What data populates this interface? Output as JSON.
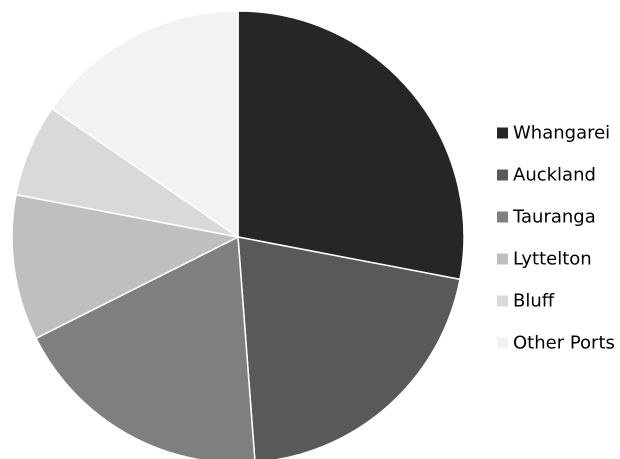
{
  "chart_data": {
    "type": "pie",
    "title": "",
    "legend_position": "right",
    "slices": [
      {
        "label": "Whangarei",
        "value": 28,
        "color": "#262626"
      },
      {
        "label": "Auckland",
        "value": 20.8,
        "color": "#595959"
      },
      {
        "label": "Tauranga",
        "value": 18.8,
        "color": "#7f7f7f"
      },
      {
        "label": "Lyttelton",
        "value": 10.4,
        "color": "#bfbfbf"
      },
      {
        "label": "Bluff",
        "value": 6.6,
        "color": "#d9d9d9"
      },
      {
        "label": "Other Ports",
        "value": 15.4,
        "color": "#f2f2f2"
      }
    ]
  }
}
